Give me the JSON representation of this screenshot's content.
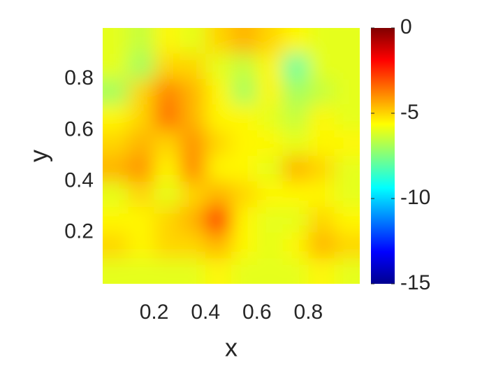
{
  "chart_data": {
    "type": "heatmap",
    "x_label": "x",
    "y_label": "y",
    "xlim": [
      0,
      1
    ],
    "ylim": [
      0,
      1
    ],
    "xticks": [
      0.2,
      0.4,
      0.6,
      0.8
    ],
    "yticks": [
      0.2,
      0.4,
      0.6,
      0.8
    ],
    "colormap": "jet",
    "clim": [
      -15,
      0
    ],
    "colorbar_ticks": [
      0,
      -5,
      -10,
      -15
    ],
    "z": [
      [
        -6,
        -6.5,
        -5.5,
        -6,
        -5,
        -4.5,
        -5,
        -5.5,
        -6,
        -6
      ],
      [
        -6,
        -7,
        -5,
        -5,
        -6,
        -6.5,
        -5.5,
        -8,
        -6,
        -6
      ],
      [
        -7,
        -5,
        -3.8,
        -4.5,
        -5.5,
        -7,
        -5.5,
        -7,
        -6.5,
        -6
      ],
      [
        -5.5,
        -5,
        -3.5,
        -4.5,
        -5.5,
        -5.5,
        -6,
        -6.5,
        -5.5,
        -6
      ],
      [
        -5,
        -4.5,
        -5,
        -4,
        -5,
        -5.5,
        -5.5,
        -6,
        -5.5,
        -5.5
      ],
      [
        -4.5,
        -4,
        -5.5,
        -3.8,
        -5.5,
        -5.5,
        -6,
        -4.5,
        -5,
        -6
      ],
      [
        -6,
        -5,
        -6,
        -5,
        -4.5,
        -5,
        -5.5,
        -5.5,
        -5.5,
        -6
      ],
      [
        -5.5,
        -5.5,
        -5,
        -4.5,
        -2,
        -5.5,
        -6,
        -6,
        -5,
        -5.5
      ],
      [
        -5,
        -5.5,
        -5,
        -5,
        -4.5,
        -5.5,
        -6,
        -5.5,
        -4.5,
        -5
      ],
      [
        -6,
        -6,
        -6,
        -6,
        -5.5,
        -6,
        -6,
        -6,
        -5.5,
        -6
      ]
    ]
  }
}
